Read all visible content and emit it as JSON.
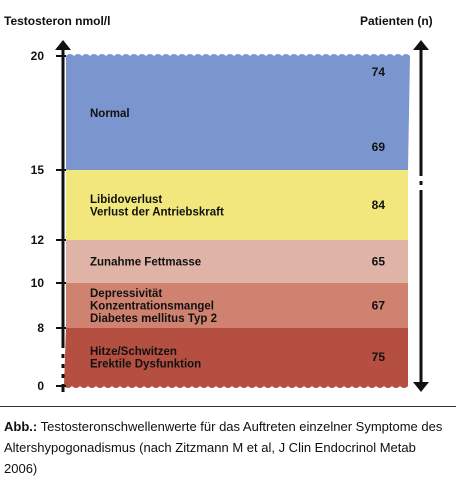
{
  "chart_data": {
    "type": "stacked_band",
    "ylabel": "Testosteron nmol/l",
    "right_label": "Patienten (n)",
    "ylim": [
      0,
      20
    ],
    "yticks": [
      "0",
      "8",
      "10",
      "12",
      "15",
      "20"
    ],
    "bands": [
      {
        "from": 0,
        "to": 8,
        "color": "#b44f41",
        "labels": [
          "Hitze/Schwitzen",
          "Erektile Dysfunktion"
        ]
      },
      {
        "from": 8,
        "to": 10,
        "color": "#cf8270",
        "labels": [
          "Depressivität",
          "Konzentrationsmangel",
          "Diabetes mellitus Typ 2"
        ]
      },
      {
        "from": 10,
        "to": 12,
        "color": "#dfb3a5",
        "labels": [
          "Zunahme Fettmasse"
        ]
      },
      {
        "from": 12,
        "to": 15,
        "color": "#f2e77d",
        "labels": [
          "Libidoverlust",
          "Verlust der Antriebskraft"
        ]
      },
      {
        "from": 15,
        "to": 20,
        "color": "#7b96cf",
        "labels": [
          "Normal"
        ]
      }
    ],
    "patients": [
      {
        "y": 19.3,
        "value": "74"
      },
      {
        "y": 16.0,
        "value": "69"
      },
      {
        "y": 13.5,
        "value": "84"
      },
      {
        "y": 11.0,
        "value": "65"
      },
      {
        "y": 9.0,
        "value": "67"
      },
      {
        "y": 4.0,
        "value": "75"
      }
    ]
  },
  "caption": {
    "prefix": "Abb.:",
    "text": " Testosteronschwellenwerte für das Auftreten einzelner Symptome des Altershypogonadismus (nach Zitzmann M et al, J Clin Endocrinol Metab 2006)"
  }
}
